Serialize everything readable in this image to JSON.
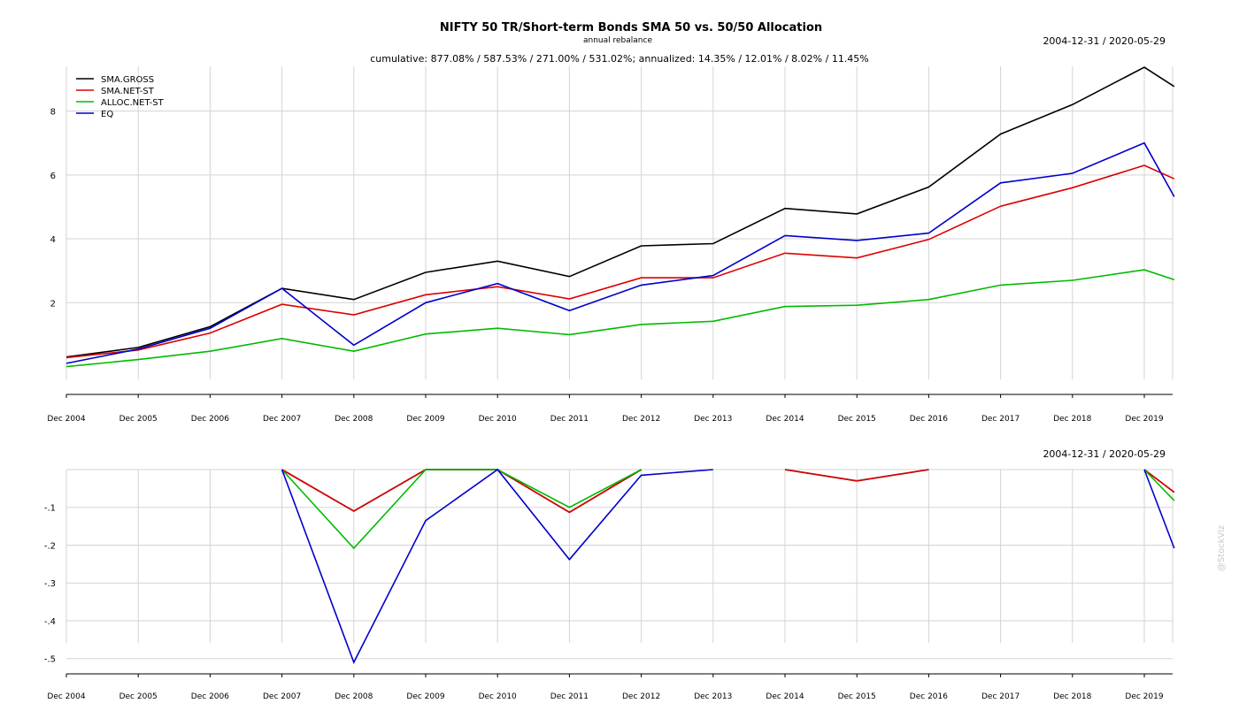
{
  "header": {
    "title": "NIFTY 50 TR/Short-term Bonds SMA 50 vs. 50/50 Allocation",
    "subtitle": "annual rebalance",
    "stats": "cumulative: 877.08% / 587.53% / 271.00% / 531.02%; annualized: 14.35% / 12.01% / 8.02% / 11.45%",
    "date_range_top": "2004-12-31 / 2020-05-29",
    "date_range_bottom": "2004-12-31 / 2020-05-29"
  },
  "watermark": "@StockViz",
  "colors": {
    "SMA.GROSS": "#000000",
    "SMA.NET-ST": "#dd0000",
    "ALLOC.NET-ST": "#00bb00",
    "EQ": "#0000cc",
    "grid": "#d3d3d3"
  },
  "chart_data": [
    {
      "type": "line",
      "title": "NIFTY 50 TR/Short-term Bonds SMA 50 vs. 50/50 Allocation",
      "xlabel": "",
      "ylabel": "",
      "grid": true,
      "legend_position": "top-left",
      "x": [
        "Dec 2004",
        "Dec 2005",
        "Dec 2006",
        "Dec 2007",
        "Dec 2008",
        "Dec 2009",
        "Dec 2010",
        "Dec 2011",
        "Dec 2012",
        "Dec 2013",
        "Dec 2014",
        "Dec 2015",
        "Dec 2016",
        "Dec 2017",
        "Dec 2018",
        "Dec 2019",
        "May 2020"
      ],
      "tick_labels": [
        "Dec 2004",
        "Dec 2005",
        "Dec 2006",
        "Dec 2007",
        "Dec 2008",
        "Dec 2009",
        "Dec 2010",
        "Dec 2011",
        "Dec 2012",
        "Dec 2013",
        "Dec 2014",
        "Dec 2015",
        "Dec 2016",
        "Dec 2017",
        "Dec 2018",
        "Dec 2019"
      ],
      "y_ticks": [
        2,
        4,
        6,
        8
      ],
      "ylim": [
        -0.4,
        9.4
      ],
      "series": [
        {
          "name": "SMA.GROSS",
          "values": [
            0.3,
            0.6,
            1.25,
            2.45,
            2.1,
            2.95,
            3.3,
            2.82,
            3.78,
            3.85,
            4.95,
            4.78,
            5.62,
            7.28,
            8.2,
            9.37,
            8.77
          ]
        },
        {
          "name": "SMA.NET-ST",
          "values": [
            0.28,
            0.52,
            1.05,
            1.95,
            1.62,
            2.25,
            2.5,
            2.12,
            2.78,
            2.78,
            3.55,
            3.4,
            3.98,
            5.02,
            5.6,
            6.3,
            5.88
          ]
        },
        {
          "name": "ALLOC.NET-ST",
          "values": [
            0.0,
            0.22,
            0.48,
            0.88,
            0.48,
            1.02,
            1.2,
            1.0,
            1.32,
            1.42,
            1.88,
            1.92,
            2.1,
            2.55,
            2.7,
            3.03,
            2.72
          ]
        },
        {
          "name": "EQ",
          "values": [
            0.1,
            0.55,
            1.2,
            2.45,
            0.67,
            2.0,
            2.6,
            1.75,
            2.55,
            2.85,
            4.1,
            3.95,
            4.18,
            5.75,
            6.05,
            7.0,
            5.32
          ]
        }
      ]
    },
    {
      "type": "line",
      "title": "",
      "xlabel": "",
      "ylabel": "",
      "grid": true,
      "x": [
        "Dec 2004",
        "Dec 2005",
        "Dec 2006",
        "Dec 2007",
        "Dec 2008",
        "Dec 2009",
        "Dec 2010",
        "Dec 2011",
        "Dec 2012",
        "Dec 2013",
        "Dec 2014",
        "Dec 2015",
        "Dec 2016",
        "Dec 2017",
        "Dec 2018",
        "Dec 2019",
        "May 2020"
      ],
      "tick_labels": [
        "Dec 2004",
        "Dec 2005",
        "Dec 2006",
        "Dec 2007",
        "Dec 2008",
        "Dec 2009",
        "Dec 2010",
        "Dec 2011",
        "Dec 2012",
        "Dec 2013",
        "Dec 2014",
        "Dec 2015",
        "Dec 2016",
        "Dec 2017",
        "Dec 2018",
        "Dec 2019"
      ],
      "y_ticks": [
        -0.1,
        -0.2,
        -0.3,
        -0.4,
        -0.5
      ],
      "ylim": [
        -0.51,
        0.0
      ],
      "series": [
        {
          "name": "SMA.GROSS",
          "values": [
            null,
            null,
            null,
            0.0,
            -0.11,
            0.0,
            0.0,
            -0.113,
            0.0,
            null,
            0.0,
            -0.03,
            0.0,
            null,
            null,
            0.0,
            -0.06
          ]
        },
        {
          "name": "SMA.NET-ST",
          "values": [
            null,
            null,
            null,
            0.0,
            -0.11,
            0.0,
            0.0,
            -0.113,
            0.0,
            null,
            0.0,
            -0.03,
            0.0,
            null,
            null,
            0.0,
            -0.06
          ]
        },
        {
          "name": "ALLOC.NET-ST",
          "values": [
            null,
            null,
            null,
            0.0,
            -0.208,
            0.0,
            0.0,
            -0.1,
            0.0,
            null,
            null,
            null,
            null,
            null,
            null,
            0.0,
            -0.082
          ]
        },
        {
          "name": "EQ",
          "values": [
            null,
            null,
            null,
            0.0,
            -0.51,
            -0.135,
            0.0,
            -0.238,
            -0.015,
            0.0,
            null,
            null,
            null,
            null,
            null,
            0.0,
            -0.208
          ]
        }
      ]
    }
  ]
}
